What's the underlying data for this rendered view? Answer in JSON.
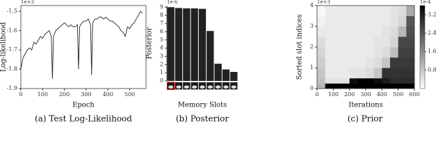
{
  "chart_data": [
    {
      "type": "line",
      "caption": "(a) Test Log-Likelihood",
      "xlabel": "Epoch",
      "ylabel": "Log-likelihood",
      "offset_label": "1e+3",
      "x": [
        0,
        10,
        20,
        30,
        40,
        50,
        60,
        70,
        80,
        90,
        100,
        110,
        120,
        130,
        140,
        145,
        150,
        160,
        170,
        180,
        190,
        200,
        210,
        220,
        230,
        240,
        250,
        260,
        265,
        270,
        280,
        290,
        300,
        310,
        320,
        325,
        330,
        340,
        350,
        360,
        370,
        380,
        390,
        400,
        410,
        420,
        430,
        440,
        450,
        460,
        470,
        480,
        490,
        500,
        510,
        520,
        530,
        540,
        550,
        560
      ],
      "series": [
        {
          "name": null,
          "color": "#222222",
          "values": [
            -1.8,
            -1.74,
            -1.72,
            -1.7,
            -1.69,
            -1.7,
            -1.66,
            -1.67,
            -1.65,
            -1.63,
            -1.64,
            -1.62,
            -1.61,
            -1.6,
            -1.63,
            -1.85,
            -1.63,
            -1.6,
            -1.59,
            -1.58,
            -1.57,
            -1.56,
            -1.57,
            -1.58,
            -1.57,
            -1.58,
            -1.58,
            -1.57,
            -1.8,
            -1.58,
            -1.56,
            -1.55,
            -1.55,
            -1.54,
            -1.57,
            -1.83,
            -1.56,
            -1.54,
            -1.54,
            -1.53,
            -1.53,
            -1.54,
            -1.53,
            -1.54,
            -1.55,
            -1.55,
            -1.56,
            -1.57,
            -1.58,
            -1.6,
            -1.61,
            -1.63,
            -1.58,
            -1.59,
            -1.57,
            -1.56,
            -1.54,
            -1.52,
            -1.5,
            -1.51
          ]
        }
      ],
      "xlim": [
        0,
        575
      ],
      "xticks": [
        0,
        100,
        200,
        300,
        400,
        500
      ],
      "ylim": [
        -1.9,
        -1.47
      ],
      "yticks": [
        -1.9,
        -1.8,
        -1.7,
        -1.6,
        -1.5
      ]
    },
    {
      "type": "bar",
      "caption": "(b) Posterior",
      "xlabel": "Memory Slots",
      "ylabel": "Posterior",
      "offset_label": "1e-6",
      "color": "#222222",
      "categories": [
        null,
        null,
        null,
        null,
        null,
        null,
        null,
        null,
        null
      ],
      "values": [
        9.0,
        8.9,
        8.85,
        8.85,
        8.8,
        6.1,
        2.1,
        1.4,
        1.1
      ],
      "ylim": [
        0,
        9.2
      ],
      "yticks": [
        0,
        1,
        2,
        3,
        4,
        5,
        6,
        7,
        8,
        9
      ]
    },
    {
      "type": "heatmap",
      "caption": "(c) Prior",
      "xlabel": "Iterations",
      "ylabel": "Sorted slot indices",
      "offset_label": "1e+3",
      "colorbar_offset_label": "1e-4",
      "x_edges": [
        0,
        50,
        100,
        150,
        200,
        250,
        300,
        350,
        400,
        450,
        500,
        550,
        600
      ],
      "y_edges": [
        0,
        0.25,
        0.5,
        1,
        1.5,
        2,
        2.5,
        3,
        3.5,
        4
      ],
      "z": [
        [
          1.0,
          0.9,
          0.8,
          0.7,
          0.6,
          0.5,
          0.3,
          0.2,
          0.1
        ],
        [
          3.6,
          0.4,
          0.3,
          0.3,
          0.3,
          0.3,
          0.3,
          0.3,
          0.3
        ],
        [
          3.6,
          0.4,
          0.3,
          0.3,
          0.3,
          0.3,
          0.3,
          0.3,
          0.3
        ],
        [
          3.6,
          0.4,
          0.3,
          0.3,
          0.3,
          0.3,
          0.3,
          0.3,
          0.3
        ],
        [
          3.6,
          3.4,
          0.4,
          0.3,
          0.3,
          0.3,
          0.3,
          0.3,
          0.3
        ],
        [
          3.6,
          3.6,
          0.4,
          0.3,
          0.3,
          0.3,
          0.3,
          0.3,
          0.3
        ],
        [
          3.6,
          3.6,
          0.5,
          0.4,
          0.3,
          0.3,
          0.3,
          0.3,
          0.3
        ],
        [
          3.6,
          3.4,
          0.8,
          0.5,
          0.4,
          0.4,
          0.3,
          0.3,
          0.3
        ],
        [
          3.6,
          3.2,
          2.9,
          0.8,
          0.5,
          0.4,
          0.4,
          0.3,
          0.3
        ],
        [
          3.6,
          3.0,
          2.9,
          2.8,
          0.9,
          0.6,
          0.5,
          0.4,
          0.4
        ],
        [
          3.6,
          3.0,
          2.9,
          2.8,
          2.7,
          2.6,
          1.0,
          0.6,
          0.5
        ],
        [
          3.6,
          3.0,
          2.9,
          2.8,
          2.7,
          2.6,
          2.5,
          2.4,
          1.2
        ]
      ],
      "xlim": [
        0,
        600
      ],
      "xticks": [
        0,
        100,
        200,
        300,
        400,
        500,
        600
      ],
      "ylim": [
        0,
        4
      ],
      "yticks": [
        0,
        1,
        2,
        3,
        4
      ],
      "clim": [
        0,
        3.6
      ],
      "cticks": [
        0.8,
        1.6,
        2.4,
        3.2
      ]
    }
  ]
}
